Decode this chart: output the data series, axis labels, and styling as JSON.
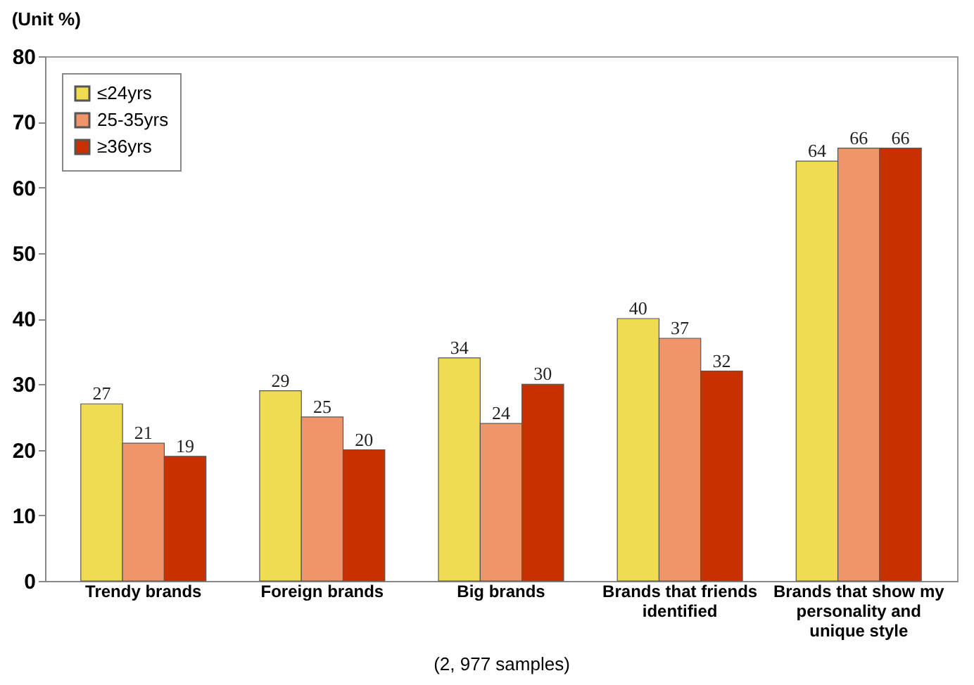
{
  "chart_data": {
    "type": "bar",
    "ylabel": "(Unit %)",
    "categories": [
      "Trendy brands",
      "Foreign brands",
      "Big brands",
      "Brands that friends identified",
      "Brands that show my personality and unique style"
    ],
    "series": [
      {
        "name": "≤24yrs",
        "color": "#f0dc50",
        "values": [
          27,
          29,
          34,
          40,
          64
        ]
      },
      {
        "name": "25-35yrs",
        "color": "#f0946a",
        "values": [
          21,
          25,
          24,
          37,
          66
        ]
      },
      {
        "name": "≥36yrs",
        "color": "#c83000",
        "values": [
          19,
          20,
          30,
          32,
          66
        ]
      }
    ],
    "ylim": [
      0,
      80
    ],
    "yticks": [
      0,
      10,
      20,
      30,
      40,
      50,
      60,
      70,
      80
    ],
    "data_labels": true,
    "grid": false,
    "legend": "top left",
    "annotations": [
      "(2, 977 samples)"
    ]
  }
}
